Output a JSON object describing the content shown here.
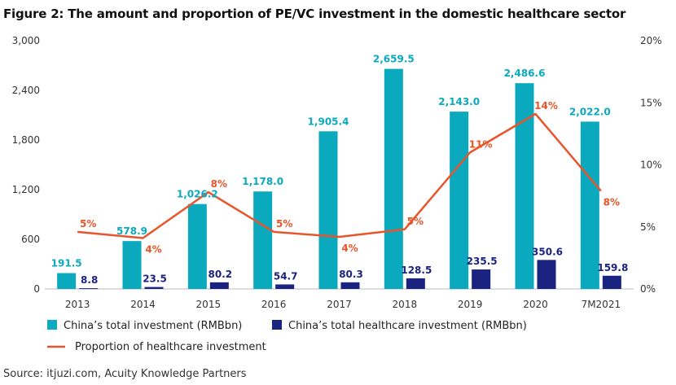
{
  "title": "Figure 2: The amount and proportion of PE/VC investment in the domestic healthcare sector",
  "source": "Source: itjuzi.com, Acuity Knowledge Partners",
  "colors": {
    "total": "#0aa9be",
    "healthcare": "#1b2380",
    "proportion": "#e8552a",
    "axis": "#bbbbbb"
  },
  "chart_data": {
    "type": "bar",
    "categories": [
      "2013",
      "2014",
      "2015",
      "2016",
      "2017",
      "2018",
      "2019",
      "2020",
      "7M2021"
    ],
    "series": [
      {
        "name": "China’s total investment (RMBbn)",
        "type": "bar",
        "axis": "left",
        "values": [
          191.5,
          578.9,
          1026.2,
          1178.0,
          1905.4,
          2659.5,
          2143.0,
          2486.6,
          2022.0
        ],
        "labels": [
          "191.5",
          "578.9",
          "1,026.2",
          "1,178.0",
          "1,905.4",
          "2,659.5",
          "2,143.0",
          "2,486.6",
          "2,022.0"
        ]
      },
      {
        "name": "China’s total healthcare investment (RMBbn)",
        "type": "bar",
        "axis": "left",
        "values": [
          8.8,
          23.5,
          80.2,
          54.7,
          80.3,
          128.5,
          235.5,
          350.6,
          159.8
        ],
        "labels": [
          "8.8",
          "23.5",
          "80.2",
          "54.7",
          "80.3",
          "128.5",
          "235.5",
          "350.6",
          "159.8"
        ]
      },
      {
        "name": "Proportion of healthcare investment",
        "type": "line",
        "axis": "right",
        "values": [
          4.6,
          4.1,
          7.8,
          4.6,
          4.2,
          4.8,
          11.0,
          14.1,
          7.9
        ],
        "labels": [
          "5%",
          "4%",
          "8%",
          "5%",
          "4%",
          "5%",
          "11%",
          "14%",
          "8%"
        ]
      }
    ],
    "y_left": {
      "lim": [
        0,
        3000
      ],
      "ticks": [
        0,
        600,
        1200,
        1800,
        2400,
        3000
      ],
      "tick_labels": [
        "0",
        "600",
        "1,200",
        "1,800",
        "2,400",
        "3,000"
      ]
    },
    "y_right": {
      "lim": [
        0,
        20
      ],
      "ticks": [
        0,
        5,
        10,
        15,
        20
      ],
      "tick_labels": [
        "0%",
        "5%",
        "10%",
        "15%",
        "20%"
      ]
    },
    "grid": false,
    "legend_position": "bottom"
  }
}
